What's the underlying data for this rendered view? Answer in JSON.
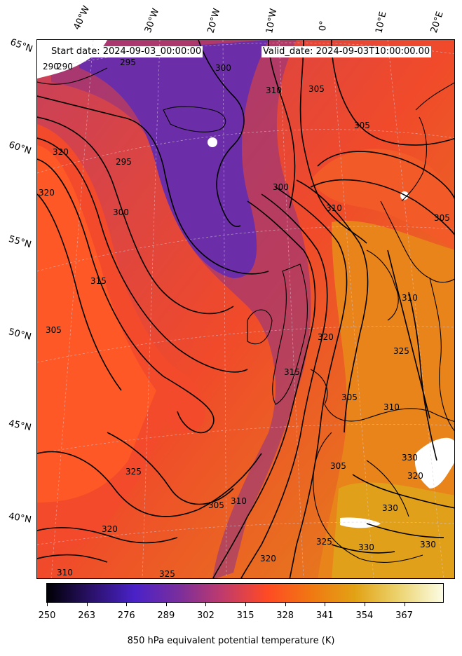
{
  "header": {
    "start_date": "Start date: 2024-09-03_00:00:00",
    "valid_date": "Valid_date: 2024-09-03T10:00:00.00"
  },
  "longitude_ticks": [
    "40°W",
    "30°W",
    "20°W",
    "10°W",
    "0°",
    "10°E",
    "20°E"
  ],
  "latitude_ticks": [
    "65°N",
    "60°N",
    "55°N",
    "50°N",
    "45°N",
    "40°N"
  ],
  "contour_labels": [
    "290",
    "290",
    "295",
    "300",
    "305",
    "310",
    "305",
    "320",
    "320",
    "295",
    "300",
    "315",
    "305",
    "300",
    "310",
    "305",
    "310",
    "325",
    "320",
    "315",
    "305",
    "310",
    "325",
    "320",
    "305",
    "310",
    "305",
    "320",
    "330",
    "325",
    "330",
    "330",
    "310",
    "320",
    "325",
    "330"
  ],
  "colorbar": {
    "ticks": [
      "250",
      "263",
      "276",
      "289",
      "302",
      "315",
      "328",
      "341",
      "354",
      "367"
    ],
    "label": "850 hPa equivalent potential temperature (K)",
    "colormap": [
      "#000004",
      "#2a1169",
      "#4a22c8",
      "#7a2e9c",
      "#c13b6b",
      "#ff4a24",
      "#f07812",
      "#e2a215",
      "#ecd470",
      "#fcfce4"
    ]
  }
}
